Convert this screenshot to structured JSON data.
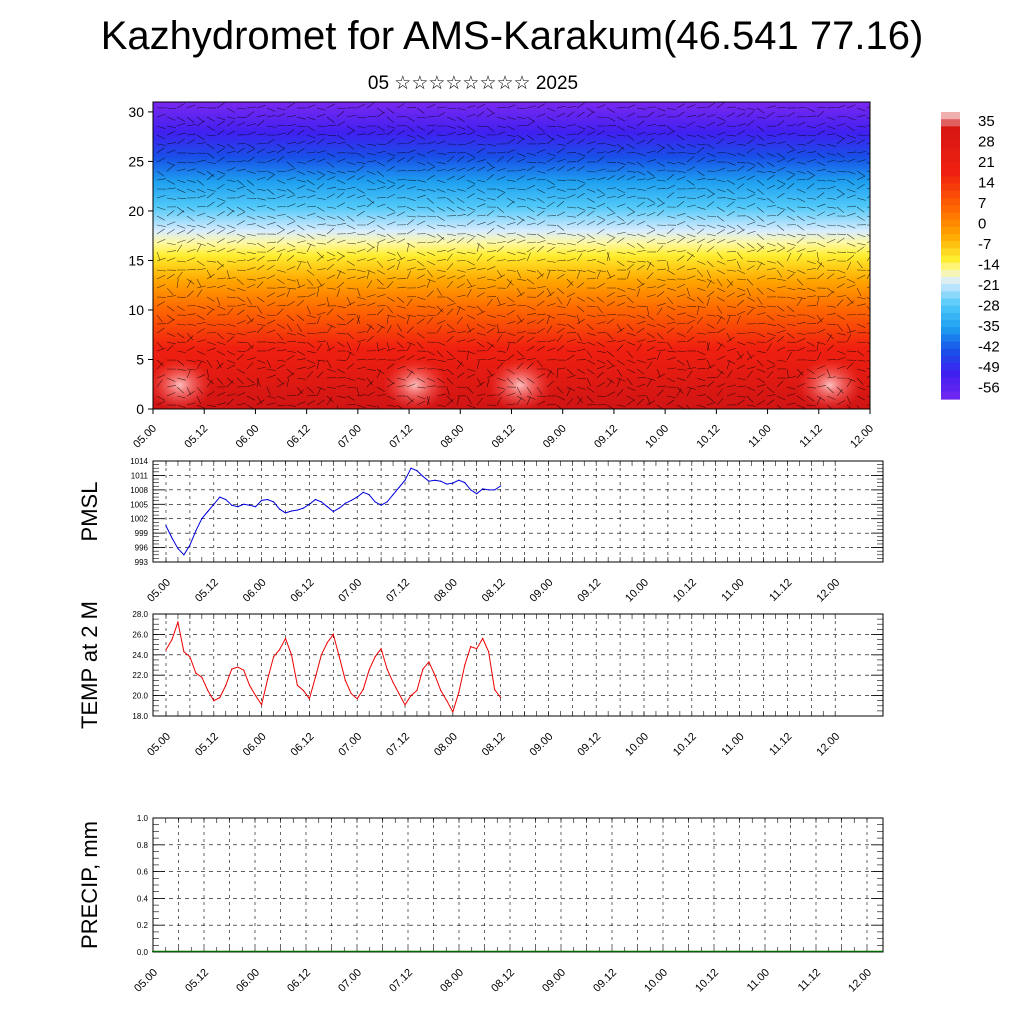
{
  "title": "Kazhydromet for AMS-Karakum(46.541 77.16)",
  "subtitle": "05 ☆☆☆☆☆☆☆☆ 2025",
  "chart_data": [
    {
      "type": "heatmap",
      "panel": "cross-section",
      "description_note": "",
      "x_tick_labels": [
        "05.00",
        "05.12",
        "06.00",
        "06.12",
        "07.00",
        "07.12",
        "08.00",
        "08.12",
        "09.00",
        "09.12",
        "10.00",
        "10.12",
        "11.00",
        "11.12",
        "12.00"
      ],
      "y_tick_labels": [
        "0",
        "5",
        "10",
        "15",
        "20",
        "25",
        "30"
      ],
      "ylim": [
        0,
        31
      ],
      "colorbar_labels": [
        "35",
        "28",
        "21",
        "14",
        "7",
        "0",
        "-7",
        "-14",
        "-21",
        "-28",
        "-35",
        "-42",
        "-49",
        "-56"
      ],
      "colorbar_range": [
        -60,
        38
      ],
      "colors": {
        "hot": "#f0f0f0",
        "warm": "#d41010",
        "orange": "#ffa000",
        "yellow": "#fff000",
        "pale": "#e0f0ff",
        "cyan": "#20b0f0",
        "blue": "#1040e0",
        "violet": "#7020f0"
      }
    },
    {
      "type": "line",
      "panel": "pmsl",
      "ylabel": "PMSL",
      "color": "#0000dd",
      "ylim": [
        993,
        1014
      ],
      "y_ticks": [
        993,
        996,
        999,
        1002,
        1005,
        1008,
        1011,
        1014
      ],
      "x_tick_labels": [
        "05.00",
        "05.12",
        "06.00",
        "06.12",
        "07.00",
        "07.12",
        "08.00",
        "08.12",
        "09.00",
        "09.12",
        "10.00",
        "10.12",
        "11.00",
        "11.12",
        "12.00"
      ],
      "values": [
        1000.5,
        998.0,
        995.8,
        994.5,
        996.5,
        999.5,
        1002.0,
        1003.5,
        1005.0,
        1006.5,
        1006.0,
        1004.8,
        1004.5,
        1005.0,
        1004.8,
        1004.5,
        1005.8,
        1006.0,
        1005.5,
        1004.0,
        1003.2,
        1003.6,
        1003.8,
        1004.2,
        1005.0,
        1006.0,
        1005.5,
        1004.5,
        1003.5,
        1004.2,
        1005.2,
        1005.8,
        1006.5,
        1007.5,
        1007.0,
        1005.5,
        1004.8,
        1005.5,
        1007.0,
        1008.5,
        1010.0,
        1012.5,
        1012.0,
        1010.8,
        1009.8,
        1010.0,
        1009.8,
        1009.2,
        1009.4,
        1010.0,
        1009.5,
        1008.0,
        1007.2,
        1008.2,
        1008.0,
        1008.0,
        1008.8
      ]
    },
    {
      "type": "line",
      "panel": "temp",
      "ylabel": "TEMP at 2 M",
      "color": "#ee0000",
      "ylim": [
        18.0,
        28.0
      ],
      "y_ticks": [
        "18.0",
        "20.0",
        "22.0",
        "24.0",
        "26.0",
        "28.0"
      ],
      "x_tick_labels": [
        "05.00",
        "05.12",
        "06.00",
        "06.12",
        "07.00",
        "07.12",
        "08.00",
        "08.12",
        "09.00",
        "09.12",
        "10.00",
        "10.12",
        "11.00",
        "11.12",
        "12.00"
      ],
      "values": [
        24.5,
        25.5,
        27.2,
        24.3,
        23.8,
        22.2,
        21.8,
        20.5,
        19.5,
        19.8,
        21.0,
        22.6,
        22.8,
        22.5,
        21.0,
        20.0,
        19.1,
        21.6,
        23.8,
        24.5,
        25.6,
        24.0,
        21.0,
        20.5,
        19.7,
        21.8,
        24.0,
        25.2,
        26.0,
        23.8,
        21.5,
        20.2,
        19.7,
        20.6,
        22.5,
        23.8,
        24.6,
        22.6,
        21.3,
        20.2,
        19.1,
        20.0,
        20.5,
        22.6,
        23.3,
        22.0,
        20.5,
        19.5,
        18.4,
        20.3,
        23.0,
        24.8,
        24.6,
        25.6,
        24.3,
        20.6,
        19.8
      ]
    },
    {
      "type": "bar",
      "panel": "precip",
      "ylabel": "PRECIP, mm",
      "color": "#006600",
      "ylim": [
        0.0,
        1.0
      ],
      "y_ticks": [
        "0.0",
        "0.2",
        "0.4",
        "0.6",
        "0.8",
        "1.0"
      ],
      "x_tick_labels": [
        "05.00",
        "05.12",
        "06.00",
        "06.12",
        "07.00",
        "07.12",
        "08.00",
        "08.12",
        "09.00",
        "09.12",
        "10.00",
        "10.12",
        "11.00",
        "11.12",
        "12.00"
      ],
      "values": [
        0,
        0,
        0,
        0,
        0,
        0,
        0,
        0,
        0,
        0,
        0,
        0,
        0,
        0,
        0,
        0,
        0,
        0,
        0,
        0,
        0,
        0,
        0,
        0,
        0,
        0,
        0,
        0,
        0,
        0,
        0,
        0,
        0,
        0,
        0,
        0,
        0,
        0,
        0,
        0,
        0,
        0,
        0,
        0,
        0,
        0,
        0,
        0,
        0,
        0,
        0,
        0,
        0,
        0,
        0,
        0,
        0
      ]
    }
  ]
}
